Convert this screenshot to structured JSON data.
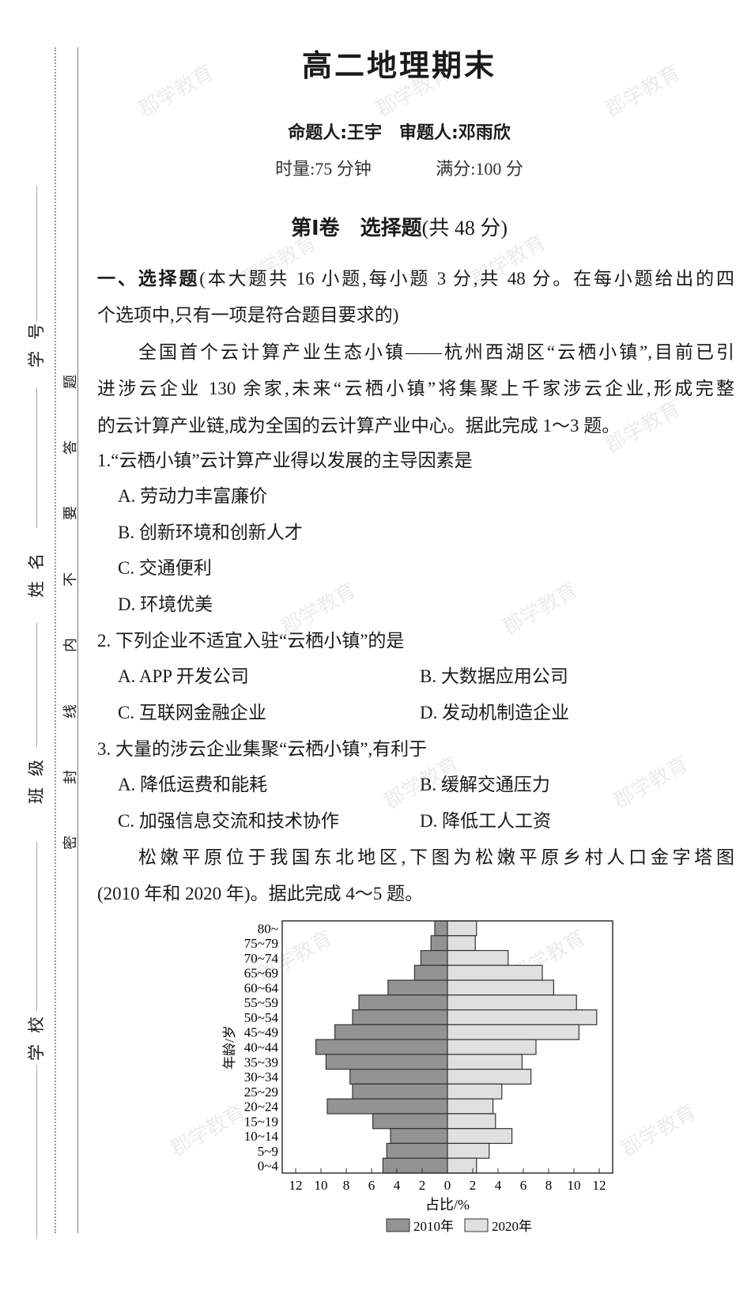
{
  "header": {
    "title": "高二地理期末",
    "authors": "命题人:王宇　审题人:邓雨欣",
    "time": "时量:75 分钟",
    "score": "满分:100 分",
    "section_prefix": "第Ⅰ卷　选择题",
    "section_suffix": "(共 48 分)"
  },
  "binding_margin": {
    "fields": [
      "学号",
      "姓名",
      "班级",
      "学校"
    ],
    "seal_chars": [
      "题",
      "答",
      "要",
      "不",
      "内",
      "线",
      "封",
      "密"
    ]
  },
  "watermark": "郡学教育",
  "instructions": {
    "bold": "一、选择题",
    "line1": "(本大题共 16 小题,每小题 3 分,共 48 分。在每小题给出的四",
    "line2": "个选项中,只有一项是符合题目要求的)"
  },
  "passage1": [
    "全国首个云计算产业生态小镇——杭州西湖区“云栖小镇”,目前已引",
    "进涉云企业 130 余家,未来“云栖小镇”将集聚上千家涉云企业,形成完整",
    "的云计算产业链,成为全国的云计算产业中心。据此完成 1～3 题。"
  ],
  "questions": [
    {
      "stem": "1.“云栖小镇”云计算产业得以发展的主导因素是",
      "options": [
        "A. 劳动力丰富廉价",
        "B. 创新环境和创新人才",
        "C. 交通便利",
        "D. 环境优美"
      ]
    },
    {
      "stem": "2. 下列企业不适宜入驻“云栖小镇”的是",
      "options": [
        "A. APP 开发公司",
        "B. 大数据应用公司",
        "C. 互联网金融企业",
        "D. 发动机制造企业"
      ]
    },
    {
      "stem": "3. 大量的涉云企业集聚“云栖小镇”,有利于",
      "options": [
        "A. 降低运费和能耗",
        "B. 缓解交通压力",
        "C. 加强信息交流和技术协作",
        "D. 降低工人工资"
      ]
    }
  ],
  "passage2": [
    "松嫩平原位于我国东北地区,下图为松嫩平原乡村人口金字塔图",
    "(2010 年和 2020 年)。据此完成 4～5 题。"
  ],
  "chart_data": {
    "type": "bar",
    "orientation": "horizontal-pyramid",
    "categories": [
      "80~",
      "75~79",
      "70~74",
      "65~69",
      "60~64",
      "55~59",
      "50~54",
      "45~49",
      "40~44",
      "35~39",
      "30~34",
      "25~29",
      "20~24",
      "15~19",
      "10~14",
      "5~9",
      "0~4"
    ],
    "series": [
      {
        "name": "2010年",
        "side": "left",
        "color": "#939393",
        "values": [
          1.0,
          1.3,
          2.1,
          2.6,
          4.7,
          7.0,
          7.5,
          8.9,
          10.4,
          9.6,
          7.7,
          7.5,
          9.5,
          5.9,
          4.5,
          4.8,
          5.1
        ]
      },
      {
        "name": "2020年",
        "side": "right",
        "color": "#e0e0e0",
        "values": [
          2.3,
          2.2,
          4.8,
          7.5,
          8.4,
          10.2,
          11.8,
          10.4,
          7.0,
          5.9,
          6.6,
          4.3,
          3.6,
          3.8,
          5.1,
          3.3,
          2.3
        ]
      }
    ],
    "xlabel": "占比/%",
    "ylabel": "年龄/岁",
    "xticks": [
      "12",
      "10",
      "8",
      "6",
      "4",
      "2",
      "0",
      "2",
      "4",
      "6",
      "8",
      "10",
      "12"
    ],
    "xlim": [
      -13,
      13
    ],
    "legend": "bottom",
    "grid": false
  }
}
